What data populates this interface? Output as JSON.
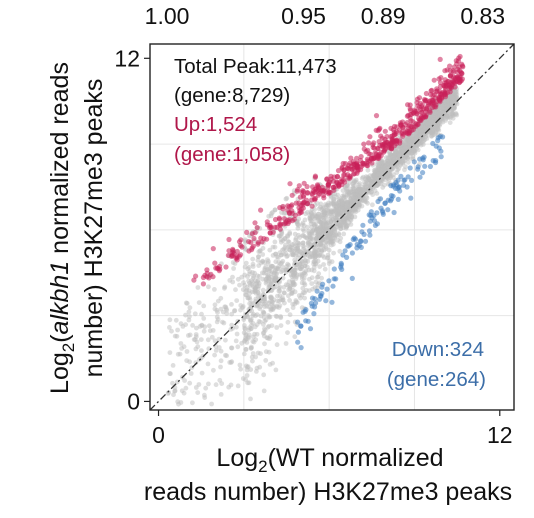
{
  "chart_data": {
    "type": "scatter",
    "title": "",
    "xlabel": {
      "prefix": "Log",
      "subscript": "2",
      "line1": "(WT normalized",
      "line2": "reads number) H3K27me3 peaks"
    },
    "ylabel": {
      "prefix": "Log",
      "subscript": "2",
      "open": "(",
      "gene": "alkbh1",
      "line1_rest": " normalized reads",
      "line2": "number) H3K27me3 peaks"
    },
    "xlim": [
      -0.3,
      12.5
    ],
    "ylim": [
      -0.3,
      12.5
    ],
    "x_ticks": [
      0,
      12
    ],
    "x_tick_labels": [
      "0",
      "12"
    ],
    "y_ticks": [
      0,
      12
    ],
    "y_tick_labels": [
      "0",
      "12"
    ],
    "top_axis_tick_labels": [
      "1.00",
      "0.95",
      "0.89",
      "0.83"
    ],
    "top_axis_tick_positions": [
      0.3,
      5.1,
      7.9,
      11.4
    ],
    "grid": true,
    "diagonal_reference": [
      [
        -0.3,
        -0.3
      ],
      [
        12.5,
        12.5
      ]
    ],
    "annotations": {
      "total_line1": "Total Peak:11,473",
      "total_line2": "(gene:8,729)",
      "up_line1": "Up:1,524",
      "up_line2": "(gene:1,058)",
      "down_line1": "Down:324",
      "down_line2": "(gene:264)"
    },
    "series": [
      {
        "key": "unchanged",
        "count": 11473,
        "color": "#bdbdbd",
        "opacity": 0.5,
        "sampled_points_drawn": 2600
      },
      {
        "key": "up",
        "count": 1524,
        "color": "#c8215a",
        "opacity": 0.55,
        "sampled_points_drawn": 560
      },
      {
        "key": "down",
        "count": 324,
        "color": "#3d7bbf",
        "opacity": 0.55,
        "sampled_points_drawn": 130
      }
    ]
  }
}
